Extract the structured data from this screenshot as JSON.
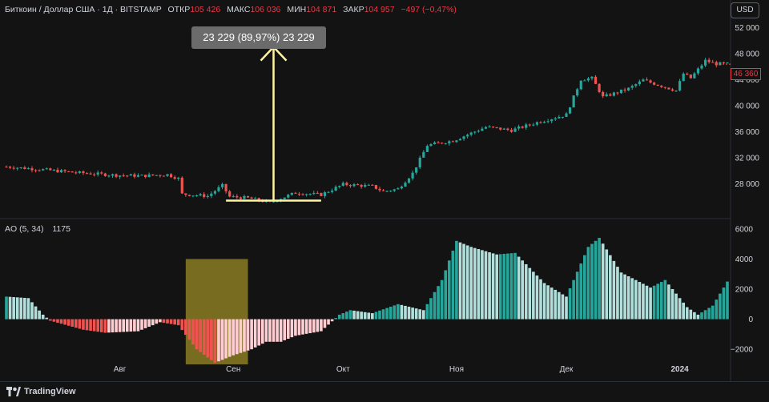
{
  "header": {
    "symbol": "Биткоин / Доллар США · 1Д · BITSTAMP",
    "open_label": "ОТКР",
    "open_value": "105 426",
    "high_label": "МАКС",
    "high_value": "106 036",
    "low_label": "МИН",
    "low_value": "104 871",
    "close_label": "ЗАКР",
    "close_value": "104 957",
    "change": "−497 (−0,47%)"
  },
  "currency_button": "USD",
  "price_tag": "46 360",
  "measure_label": "23 229 (89,97%) 23 229",
  "indicator": {
    "name": "AO (5, 34)",
    "value": "1175"
  },
  "footer": {
    "brand": "TradingView"
  },
  "colors": {
    "up": "#26a69a",
    "down": "#ef5350",
    "ao_up": "#26a69a",
    "ao_up_light": "#b2dfdb",
    "ao_down": "#ef5350",
    "ao_down_light": "#ffcdd2",
    "annotation": "#fff59d",
    "highlight": "#8b7d24"
  },
  "chart_data": [
    {
      "type": "candlestick",
      "title": "",
      "ylim": [
        23000,
        54000
      ],
      "yticks": [
        "52 000",
        "48 000",
        "44 000",
        "40 000",
        "36 000",
        "32 000",
        "28 000"
      ],
      "ytick_values": [
        52000,
        48000,
        44000,
        40000,
        36000,
        32000,
        28000
      ],
      "xticks": [
        "Авг",
        "Сен",
        "Окт",
        "Ноя",
        "Дек",
        "2024"
      ],
      "xtick_dates": [
        "2023-08-01",
        "2023-09-01",
        "2023-10-01",
        "2023-11-01",
        "2023-12-01",
        "2024-01-01"
      ],
      "anchors": [
        [
          "2023-07-01",
          30600
        ],
        [
          "2023-07-08",
          30300
        ],
        [
          "2023-07-14",
          30000
        ],
        [
          "2023-07-20",
          29700
        ],
        [
          "2023-07-31",
          29300
        ],
        [
          "2023-08-07",
          29200
        ],
        [
          "2023-08-14",
          29400
        ],
        [
          "2023-08-17",
          28800
        ],
        [
          "2023-08-18",
          26400
        ],
        [
          "2023-08-25",
          26100
        ],
        [
          "2023-08-29",
          27700
        ],
        [
          "2023-08-31",
          26000
        ],
        [
          "2023-09-05",
          25800
        ],
        [
          "2023-09-11",
          25100
        ],
        [
          "2023-09-18",
          26600
        ],
        [
          "2023-09-25",
          26300
        ],
        [
          "2023-10-01",
          27900
        ],
        [
          "2023-10-09",
          27600
        ],
        [
          "2023-10-12",
          26800
        ],
        [
          "2023-10-16",
          27200
        ],
        [
          "2023-10-20",
          29600
        ],
        [
          "2023-10-24",
          33900
        ],
        [
          "2023-10-31",
          34600
        ],
        [
          "2023-11-09",
          36700
        ],
        [
          "2023-11-16",
          36200
        ],
        [
          "2023-11-23",
          37400
        ],
        [
          "2023-12-01",
          38600
        ],
        [
          "2023-12-05",
          44000
        ],
        [
          "2023-12-08",
          44200
        ],
        [
          "2023-12-11",
          41300
        ],
        [
          "2023-12-18",
          42600
        ],
        [
          "2023-12-22",
          43900
        ],
        [
          "2023-12-31",
          42300
        ],
        [
          "2024-01-02",
          44900
        ],
        [
          "2024-01-04",
          44200
        ],
        [
          "2024-01-08",
          46900
        ],
        [
          "2024-01-11",
          46400
        ]
      ],
      "last_price": 46360
    },
    {
      "type": "histogram",
      "name": "AO (5, 34)",
      "ylim": [
        -3000,
        6200
      ],
      "yticks": [
        "6000",
        "4000",
        "2000",
        "0",
        "−2000"
      ],
      "ytick_values": [
        6000,
        4000,
        2000,
        0,
        -2000
      ],
      "anchors": [
        [
          "2023-07-01",
          1500
        ],
        [
          "2023-07-07",
          1400
        ],
        [
          "2023-07-11",
          300
        ],
        [
          "2023-07-13",
          -100
        ],
        [
          "2023-07-22",
          -700
        ],
        [
          "2023-07-28",
          -900
        ],
        [
          "2023-08-06",
          -800
        ],
        [
          "2023-08-12",
          -200
        ],
        [
          "2023-08-17",
          -400
        ],
        [
          "2023-08-22",
          -2000
        ],
        [
          "2023-08-27",
          -2900
        ],
        [
          "2023-09-01",
          -2400
        ],
        [
          "2023-09-06",
          -2000
        ],
        [
          "2023-09-10",
          -1500
        ],
        [
          "2023-09-14",
          -1500
        ],
        [
          "2023-09-18",
          -1100
        ],
        [
          "2023-09-25",
          -800
        ],
        [
          "2023-09-30",
          300
        ],
        [
          "2023-10-03",
          600
        ],
        [
          "2023-10-09",
          400
        ],
        [
          "2023-10-16",
          1000
        ],
        [
          "2023-10-23",
          600
        ],
        [
          "2023-10-28",
          2600
        ],
        [
          "2023-11-01",
          5200
        ],
        [
          "2023-11-05",
          4800
        ],
        [
          "2023-11-12",
          4300
        ],
        [
          "2023-11-17",
          4400
        ],
        [
          "2023-11-25",
          2400
        ],
        [
          "2023-12-01",
          1500
        ],
        [
          "2023-12-07",
          4800
        ],
        [
          "2023-12-10",
          5400
        ],
        [
          "2023-12-16",
          3100
        ],
        [
          "2023-12-24",
          2100
        ],
        [
          "2023-12-28",
          2600
        ],
        [
          "2024-01-03",
          800
        ],
        [
          "2024-01-06",
          300
        ],
        [
          "2024-01-10",
          900
        ],
        [
          "2024-01-14",
          2500
        ]
      ]
    }
  ]
}
